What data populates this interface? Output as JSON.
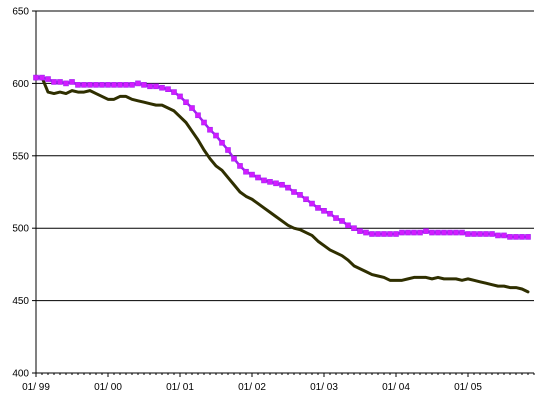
{
  "chart_data": {
    "type": "line",
    "title": "",
    "xlabel": "",
    "ylabel": "",
    "ylim": [
      400,
      650
    ],
    "yticks": [
      400,
      450,
      500,
      550,
      600,
      650
    ],
    "xtick_labels": [
      "01/ 99",
      "01/ 00",
      "01/ 01",
      "01/ 02",
      "01/ 03",
      "01/ 04",
      "01/ 05"
    ],
    "x_unit": "month index from 01/ 99",
    "xlim": [
      0,
      83
    ],
    "grid": "horizontal",
    "legend": "none",
    "series": [
      {
        "color": "#a020f0",
        "marker_color": "#d21cff",
        "marker": "square",
        "values": [
          604,
          604,
          603,
          601,
          601,
          600,
          601,
          599,
          599,
          599,
          599,
          599,
          599,
          599,
          599,
          599,
          599,
          600,
          599,
          598,
          598,
          597,
          596,
          594,
          591,
          587,
          583,
          578,
          573,
          568,
          564,
          559,
          554,
          548,
          543,
          539,
          537,
          535,
          533,
          532,
          531,
          530,
          528,
          525,
          523,
          520,
          517,
          514,
          512,
          510,
          507,
          505,
          502,
          500,
          498,
          497,
          496,
          496,
          496,
          496,
          496,
          497,
          497,
          497,
          497,
          498,
          497,
          497,
          497,
          497,
          497,
          497,
          496,
          496,
          496,
          496,
          496,
          495,
          495,
          494,
          494,
          494,
          494
        ]
      },
      {
        "color": "#2f2f00",
        "marker": "none",
        "values": [
          604,
          604,
          594,
          593,
          594,
          593,
          595,
          594,
          594,
          595,
          593,
          591,
          589,
          589,
          591,
          591,
          589,
          588,
          587,
          586,
          585,
          585,
          583,
          581,
          577,
          573,
          567,
          561,
          554,
          548,
          543,
          540,
          535,
          530,
          525,
          522,
          520,
          517,
          514,
          511,
          508,
          505,
          502,
          500,
          499,
          497,
          495,
          491,
          488,
          485,
          483,
          481,
          478,
          474,
          472,
          470,
          468,
          467,
          466,
          464,
          464,
          464,
          465,
          466,
          466,
          466,
          465,
          466,
          465,
          465,
          465,
          464,
          465,
          464,
          463,
          462,
          461,
          460,
          460,
          459,
          459,
          458,
          456
        ]
      }
    ]
  }
}
